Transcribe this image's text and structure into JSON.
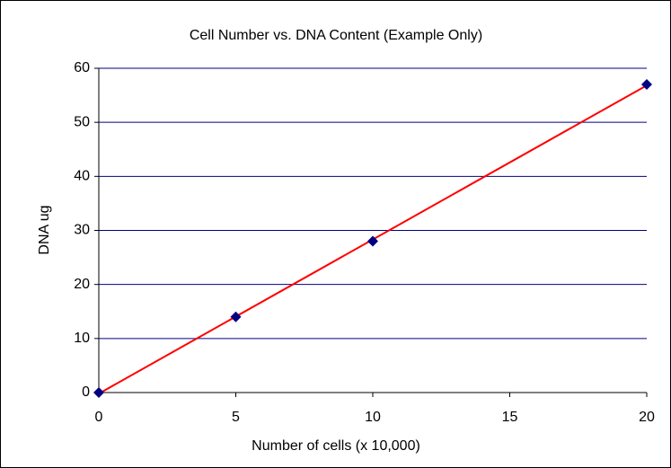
{
  "chart_data": {
    "type": "scatter",
    "title": "Cell Number vs. DNA Content  (Example Only)",
    "x_label": "Number of cells (x 10,000)",
    "y_label": "DNA ug",
    "series": [
      {
        "color": "#000080",
        "x": [
          0,
          5,
          10,
          20
        ],
        "values": [
          0,
          14,
          28,
          57
        ]
      }
    ],
    "trendline": {
      "type": "linear",
      "color": "#ff0000"
    },
    "xlim": [
      0,
      20
    ],
    "xticks": [
      0,
      5,
      10,
      15,
      20
    ],
    "ylim": [
      0,
      60
    ],
    "yticks": [
      0,
      10,
      20,
      30,
      40,
      50,
      60
    ],
    "grid": true,
    "grid_color": "#000080"
  }
}
